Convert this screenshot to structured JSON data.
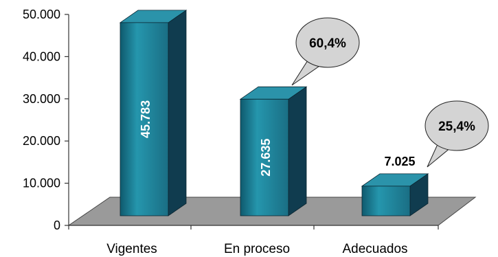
{
  "chart_data": {
    "type": "bar",
    "categories": [
      "Vigentes",
      "En proceso",
      "Adecuados"
    ],
    "values": [
      45783,
      27635,
      7025
    ],
    "value_labels": [
      "45.783",
      "27.635",
      "7.025"
    ],
    "yticks": [
      {
        "value": 0,
        "label": "0"
      },
      {
        "value": 10000,
        "label": "10.000"
      },
      {
        "value": 20000,
        "label": "20.000"
      },
      {
        "value": 30000,
        "label": "30.000"
      },
      {
        "value": 40000,
        "label": "40.000"
      },
      {
        "value": 50000,
        "label": "50.000"
      }
    ],
    "ylim": [
      0,
      50000
    ],
    "annotations": [
      {
        "category": "En proceso",
        "text": "60,4%"
      },
      {
        "category": "Adecuados",
        "text": "25,4%"
      }
    ],
    "style": "3d-bar",
    "colors": {
      "bar_front": "#1d7f95",
      "bar_side": "#103c4f",
      "bar_top": "#2b93aa",
      "floor": "#9a9a9a",
      "bubble": "#d4d4d4"
    }
  }
}
